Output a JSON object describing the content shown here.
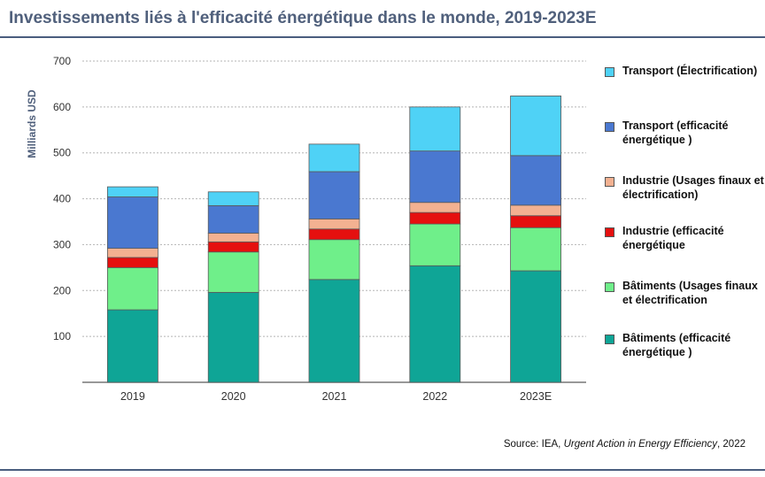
{
  "title": "Investissements liés à l'efficacité énergétique dans le monde, 2019-2023E",
  "source": {
    "prefix": "Source: IEA, ",
    "italic": "Urgent Action in Energy Efficiency",
    "suffix": ", 2022"
  },
  "chart_data": {
    "type": "bar",
    "stacked": true,
    "ylabel": "Milliards USD",
    "xlabel": "",
    "ylim": [
      0,
      700
    ],
    "yticks": [
      100,
      200,
      300,
      400,
      500,
      600,
      700
    ],
    "grid": true,
    "legend_position": "right",
    "categories": [
      "2019",
      "2020",
      "2021",
      "2022",
      "2023E"
    ],
    "series": [
      {
        "name": "Bâtiments (efficacité énergétique )",
        "color": "#0fa596",
        "values": [
          158,
          196,
          224,
          254,
          243
        ]
      },
      {
        "name": "Bâtiments (Usages finaux et électrification",
        "color": "#6fef8a",
        "values": [
          92,
          88,
          87,
          91,
          94
        ]
      },
      {
        "name": "Industrie (efficacité énergétique",
        "color": "#e5100f",
        "values": [
          22,
          22,
          23,
          25,
          26
        ]
      },
      {
        "name": "Industrie (Usages finaux et électrification)",
        "color": "#f3b191",
        "values": [
          20,
          19,
          22,
          22,
          23
        ]
      },
      {
        "name": "Transport (efficacité énergétique )",
        "color": "#4a78d0",
        "values": [
          112,
          60,
          103,
          112,
          108
        ]
      },
      {
        "name": "Transport (Électrification)",
        "color": "#4fd2f6",
        "values": [
          22,
          30,
          60,
          96,
          130
        ]
      }
    ]
  }
}
